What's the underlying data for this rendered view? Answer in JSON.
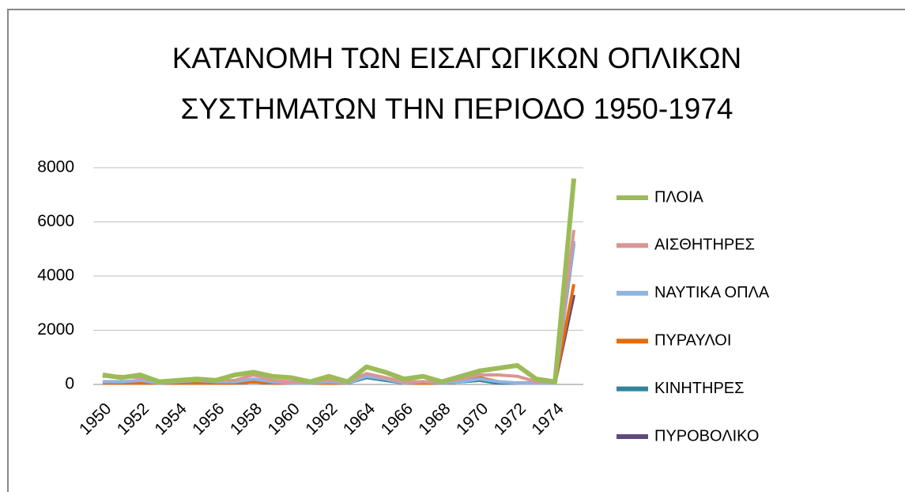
{
  "chart_data": {
    "type": "line",
    "title": [
      "ΚΑΤΑΝΟΜΗ ΤΩΝ ΕΙΣΑΓΩΓΙΚΩΝ ΟΠΛΙΚΩΝ",
      "ΣΥΣΤΗΜΑΤΩΝ ΤΗΝ ΠΕΡΙΟΔΟ 1950-1974"
    ],
    "categories": [
      "1950",
      null,
      "1952",
      null,
      "1954",
      null,
      "1956",
      null,
      "1958",
      null,
      "1960",
      null,
      "1962",
      null,
      "1964",
      null,
      "1966",
      null,
      "1968",
      null,
      "1970",
      null,
      "1972",
      null,
      "1974",
      null
    ],
    "series": [
      {
        "name": "ΠΛΟΙΑ",
        "color": "#9bbb59",
        "values": [
          350,
          250,
          350,
          100,
          150,
          200,
          150,
          350,
          450,
          300,
          250,
          100,
          300,
          100,
          650,
          450,
          200,
          300,
          100,
          300,
          500,
          600,
          700,
          200,
          100,
          7600
        ]
      },
      {
        "name": "ΑΙΣΘΗΤΗΡΕΣ",
        "color": "#d99694",
        "values": [
          300,
          300,
          250,
          100,
          150,
          200,
          150,
          150,
          350,
          150,
          100,
          100,
          150,
          100,
          400,
          250,
          100,
          100,
          100,
          200,
          350,
          350,
          300,
          100,
          100,
          5700
        ]
      },
      {
        "name": "ΝΑΥΤΙΚΑ ΟΠΛΑ",
        "color": "#8eb4e3",
        "values": [
          100,
          100,
          150,
          50,
          100,
          150,
          100,
          100,
          200,
          100,
          50,
          50,
          100,
          50,
          300,
          200,
          50,
          100,
          50,
          100,
          200,
          100,
          50,
          50,
          50,
          5300
        ]
      },
      {
        "name": "ΠΥΡΑΥΛΟΙ",
        "color": "#e46c0a",
        "values": [
          50,
          50,
          50,
          50,
          50,
          50,
          50,
          50,
          100,
          50,
          50,
          50,
          50,
          50,
          300,
          200,
          50,
          50,
          50,
          150,
          250,
          100,
          50,
          50,
          50,
          3700
        ]
      },
      {
        "name": "ΚΙΝΗΤΗΡΕΣ",
        "color": "#31859c",
        "values": [
          100,
          100,
          100,
          50,
          100,
          100,
          100,
          100,
          150,
          100,
          50,
          50,
          100,
          50,
          250,
          150,
          50,
          100,
          50,
          100,
          150,
          50,
          50,
          50,
          50,
          5200
        ]
      },
      {
        "name": "ΠΥΡΟΒΟΛΙΚΟ",
        "color": "#604a7b",
        "values": [
          50,
          50,
          50,
          50,
          50,
          50,
          50,
          50,
          100,
          50,
          50,
          50,
          50,
          50,
          350,
          200,
          50,
          50,
          50,
          100,
          150,
          50,
          50,
          50,
          50,
          3300
        ]
      }
    ],
    "ylim": [
      0,
      8000
    ],
    "yticks": [
      0,
      2000,
      4000,
      6000,
      8000
    ],
    "grid": true,
    "legend": "right"
  }
}
